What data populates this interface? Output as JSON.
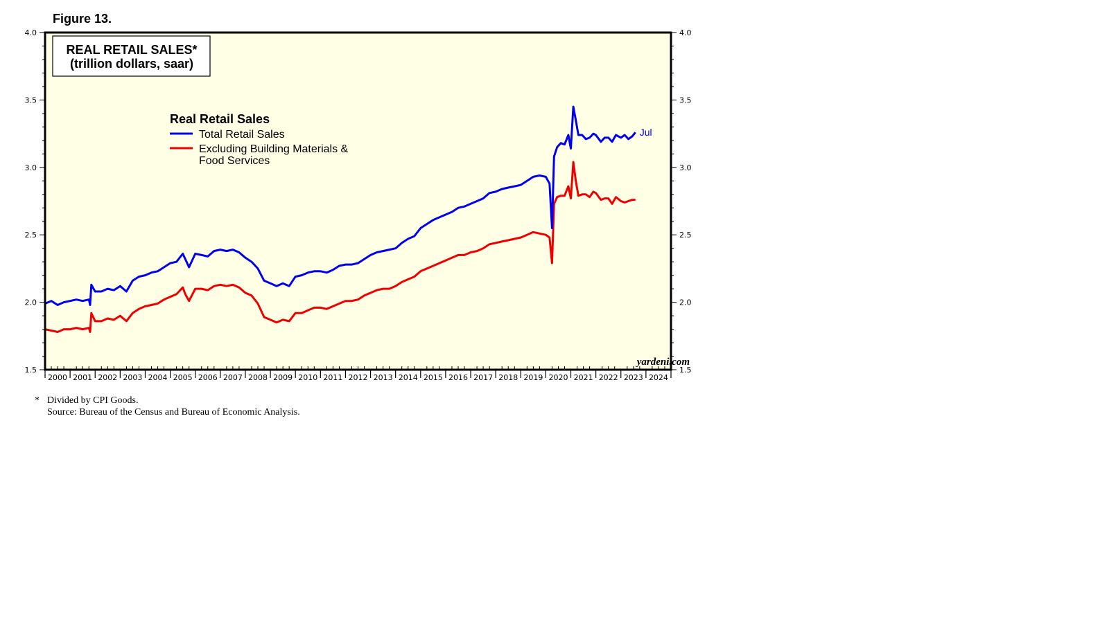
{
  "figure_label": "Figure 13.",
  "footnotes": {
    "star": "*",
    "note": "Divided by CPI Goods.",
    "source": "Source: Bureau of the Census and Bureau of Economic Analysis."
  },
  "colors": {
    "plot_bg": "#ffffe6",
    "total": "#0000ee",
    "excl": "#ee0000"
  },
  "chart_data": {
    "type": "line",
    "title": "REAL RETAIL SALES*",
    "subtitle": "(trillion dollars, saar)",
    "legend_title": "Real Retail Sales",
    "legend_position": "top-left",
    "watermark": "yardeni.com",
    "end_label": "Jul",
    "xlabel": "",
    "ylabel": "",
    "ylim": [
      1.5,
      4.0
    ],
    "xlim": [
      2000.0,
      2025.0
    ],
    "y_ticks": [
      "1.5",
      "2.0",
      "2.5",
      "3.0",
      "3.5",
      "4.0"
    ],
    "x_ticks": [
      "2000",
      "2001",
      "2002",
      "2003",
      "2004",
      "2005",
      "2006",
      "2007",
      "2008",
      "2009",
      "2010",
      "2011",
      "2012",
      "2013",
      "2014",
      "2015",
      "2016",
      "2017",
      "2018",
      "2019",
      "2020",
      "2021",
      "2022",
      "2023",
      "2024"
    ],
    "series": [
      {
        "name": "Total Retail Sales",
        "legend_label": "Total Retail Sales",
        "x": [
          2000.0,
          2000.25,
          2000.5,
          2000.75,
          2001.0,
          2001.25,
          2001.5,
          2001.75,
          2001.8,
          2001.85,
          2002.0,
          2002.25,
          2002.5,
          2002.75,
          2003.0,
          2003.25,
          2003.5,
          2003.75,
          2004.0,
          2004.25,
          2004.5,
          2004.75,
          2005.0,
          2005.25,
          2005.5,
          2005.6,
          2005.75,
          2006.0,
          2006.25,
          2006.5,
          2006.75,
          2007.0,
          2007.25,
          2007.5,
          2007.75,
          2008.0,
          2008.25,
          2008.5,
          2008.75,
          2009.0,
          2009.25,
          2009.5,
          2009.75,
          2010.0,
          2010.25,
          2010.5,
          2010.75,
          2011.0,
          2011.25,
          2011.5,
          2011.75,
          2012.0,
          2012.25,
          2012.5,
          2012.75,
          2013.0,
          2013.25,
          2013.5,
          2013.75,
          2014.0,
          2014.25,
          2014.5,
          2014.75,
          2015.0,
          2015.25,
          2015.5,
          2015.75,
          2016.0,
          2016.25,
          2016.5,
          2016.75,
          2017.0,
          2017.25,
          2017.5,
          2017.75,
          2018.0,
          2018.25,
          2018.5,
          2018.75,
          2019.0,
          2019.25,
          2019.5,
          2019.75,
          2020.0,
          2020.15,
          2020.25,
          2020.33,
          2020.45,
          2020.6,
          2020.75,
          2020.9,
          2021.0,
          2021.1,
          2021.2,
          2021.3,
          2021.45,
          2021.6,
          2021.75,
          2021.9,
          2022.0,
          2022.2,
          2022.35,
          2022.5,
          2022.65,
          2022.8,
          2023.0,
          2023.15,
          2023.3,
          2023.45,
          2023.58
        ],
        "values": [
          1.99,
          2.01,
          1.98,
          2.0,
          2.01,
          2.02,
          2.01,
          2.02,
          1.98,
          2.13,
          2.08,
          2.08,
          2.1,
          2.09,
          2.12,
          2.08,
          2.16,
          2.19,
          2.2,
          2.22,
          2.23,
          2.26,
          2.29,
          2.3,
          2.36,
          2.32,
          2.26,
          2.36,
          2.35,
          2.34,
          2.38,
          2.39,
          2.38,
          2.39,
          2.37,
          2.33,
          2.3,
          2.25,
          2.16,
          2.14,
          2.12,
          2.14,
          2.12,
          2.19,
          2.2,
          2.22,
          2.23,
          2.23,
          2.22,
          2.24,
          2.27,
          2.28,
          2.28,
          2.29,
          2.32,
          2.35,
          2.37,
          2.38,
          2.39,
          2.4,
          2.44,
          2.47,
          2.49,
          2.55,
          2.58,
          2.61,
          2.63,
          2.65,
          2.67,
          2.7,
          2.71,
          2.73,
          2.75,
          2.77,
          2.81,
          2.82,
          2.84,
          2.85,
          2.86,
          2.87,
          2.9,
          2.93,
          2.94,
          2.93,
          2.88,
          2.55,
          3.08,
          3.15,
          3.18,
          3.17,
          3.24,
          3.14,
          3.45,
          3.35,
          3.24,
          3.24,
          3.21,
          3.22,
          3.25,
          3.24,
          3.19,
          3.22,
          3.22,
          3.19,
          3.24,
          3.22,
          3.24,
          3.21,
          3.23,
          3.26
        ]
      },
      {
        "name": "Excluding Building Materials & Food Services",
        "legend_label_1": "Excluding Building Materials &",
        "legend_label_2": "Food Services",
        "x": [
          2000.0,
          2000.25,
          2000.5,
          2000.75,
          2001.0,
          2001.25,
          2001.5,
          2001.75,
          2001.8,
          2001.85,
          2002.0,
          2002.25,
          2002.5,
          2002.75,
          2003.0,
          2003.25,
          2003.5,
          2003.75,
          2004.0,
          2004.25,
          2004.5,
          2004.75,
          2005.0,
          2005.25,
          2005.5,
          2005.6,
          2005.75,
          2006.0,
          2006.25,
          2006.5,
          2006.75,
          2007.0,
          2007.25,
          2007.5,
          2007.75,
          2008.0,
          2008.25,
          2008.5,
          2008.75,
          2009.0,
          2009.25,
          2009.5,
          2009.75,
          2010.0,
          2010.25,
          2010.5,
          2010.75,
          2011.0,
          2011.25,
          2011.5,
          2011.75,
          2012.0,
          2012.25,
          2012.5,
          2012.75,
          2013.0,
          2013.25,
          2013.5,
          2013.75,
          2014.0,
          2014.25,
          2014.5,
          2014.75,
          2015.0,
          2015.25,
          2015.5,
          2015.75,
          2016.0,
          2016.25,
          2016.5,
          2016.75,
          2017.0,
          2017.25,
          2017.5,
          2017.75,
          2018.0,
          2018.25,
          2018.5,
          2018.75,
          2019.0,
          2019.25,
          2019.5,
          2019.75,
          2020.0,
          2020.15,
          2020.25,
          2020.33,
          2020.45,
          2020.6,
          2020.75,
          2020.9,
          2021.0,
          2021.1,
          2021.2,
          2021.3,
          2021.45,
          2021.6,
          2021.75,
          2021.9,
          2022.0,
          2022.2,
          2022.35,
          2022.5,
          2022.65,
          2022.8,
          2023.0,
          2023.15,
          2023.3,
          2023.45,
          2023.58
        ],
        "values": [
          1.8,
          1.79,
          1.78,
          1.8,
          1.8,
          1.81,
          1.8,
          1.81,
          1.78,
          1.92,
          1.86,
          1.86,
          1.88,
          1.87,
          1.9,
          1.86,
          1.92,
          1.95,
          1.97,
          1.98,
          1.99,
          2.02,
          2.04,
          2.06,
          2.11,
          2.06,
          2.01,
          2.1,
          2.1,
          2.09,
          2.12,
          2.13,
          2.12,
          2.13,
          2.11,
          2.07,
          2.05,
          1.99,
          1.89,
          1.87,
          1.85,
          1.87,
          1.86,
          1.92,
          1.92,
          1.94,
          1.96,
          1.96,
          1.95,
          1.97,
          1.99,
          2.01,
          2.01,
          2.02,
          2.05,
          2.07,
          2.09,
          2.1,
          2.1,
          2.12,
          2.15,
          2.17,
          2.19,
          2.23,
          2.25,
          2.27,
          2.29,
          2.31,
          2.33,
          2.35,
          2.35,
          2.37,
          2.38,
          2.4,
          2.43,
          2.44,
          2.45,
          2.46,
          2.47,
          2.48,
          2.5,
          2.52,
          2.51,
          2.5,
          2.48,
          2.29,
          2.73,
          2.78,
          2.79,
          2.79,
          2.86,
          2.77,
          3.04,
          2.9,
          2.79,
          2.8,
          2.8,
          2.78,
          2.82,
          2.81,
          2.76,
          2.77,
          2.77,
          2.73,
          2.78,
          2.75,
          2.74,
          2.75,
          2.76,
          2.76
        ]
      }
    ]
  }
}
